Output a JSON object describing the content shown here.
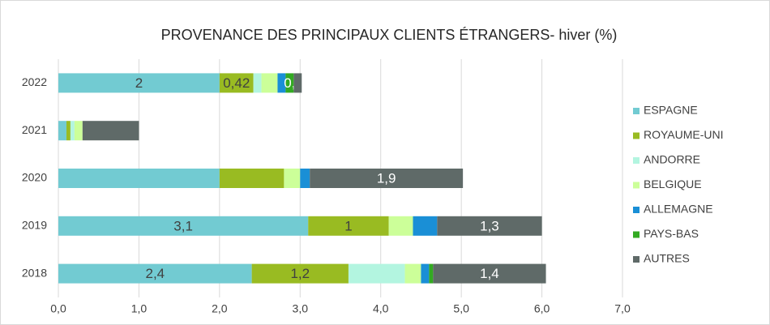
{
  "chart_data": {
    "type": "stacked_barh",
    "title": "PROVENANCE DES PRINCIPAUX CLIENTS ÉTRANGERS- hiver (%)",
    "categories": [
      "2022",
      "2021",
      "2020",
      "2019",
      "2018"
    ],
    "series": [
      {
        "name": "ESPAGNE",
        "color": "#72cbd2",
        "values": [
          2.0,
          0.1,
          2.0,
          3.1,
          2.4
        ],
        "value_labels": [
          "2",
          null,
          null,
          "3,1",
          "2,4"
        ]
      },
      {
        "name": "ROYAUME-UNI",
        "color": "#99bb22",
        "values": [
          0.42,
          0.05,
          0.8,
          1.0,
          1.2
        ],
        "value_labels": [
          "0,42",
          null,
          null,
          "1",
          "1,2"
        ]
      },
      {
        "name": "ANDORRE",
        "color": "#b3f5e0",
        "values": [
          0.1,
          0.05,
          0,
          0,
          0.7
        ]
      },
      {
        "name": "BELGIQUE",
        "color": "#ccff99",
        "values": [
          0.2,
          0.1,
          0.2,
          0.3,
          0.2
        ]
      },
      {
        "name": "ALLEMAGNE",
        "color": "#1a8fd6",
        "values": [
          0.1,
          0,
          0.12,
          0.3,
          0.1
        ]
      },
      {
        "name": "PAYS-BAS",
        "color": "#33aa22",
        "values": [
          0.1,
          0,
          0,
          0,
          0.05
        ],
        "value_labels": [
          "0,",
          null,
          null,
          null,
          null
        ]
      },
      {
        "name": "AUTRES",
        "color": "#5f6a68",
        "values": [
          0.1,
          0.7,
          1.9,
          1.3,
          1.4
        ],
        "value_labels": [
          null,
          null,
          "1,9",
          "1,3",
          "1,4"
        ]
      }
    ],
    "xlim": [
      0,
      7
    ],
    "xticks": [
      {
        "value": 0,
        "label": "0,0"
      },
      {
        "value": 1,
        "label": "1,0"
      },
      {
        "value": 2,
        "label": "2,0"
      },
      {
        "value": 3,
        "label": "3,0"
      },
      {
        "value": 4,
        "label": "4,0"
      },
      {
        "value": 5,
        "label": "5,0"
      },
      {
        "value": 6,
        "label": "6,0"
      },
      {
        "value": 7,
        "label": "7,0"
      }
    ],
    "grid": true,
    "legend": "right"
  }
}
